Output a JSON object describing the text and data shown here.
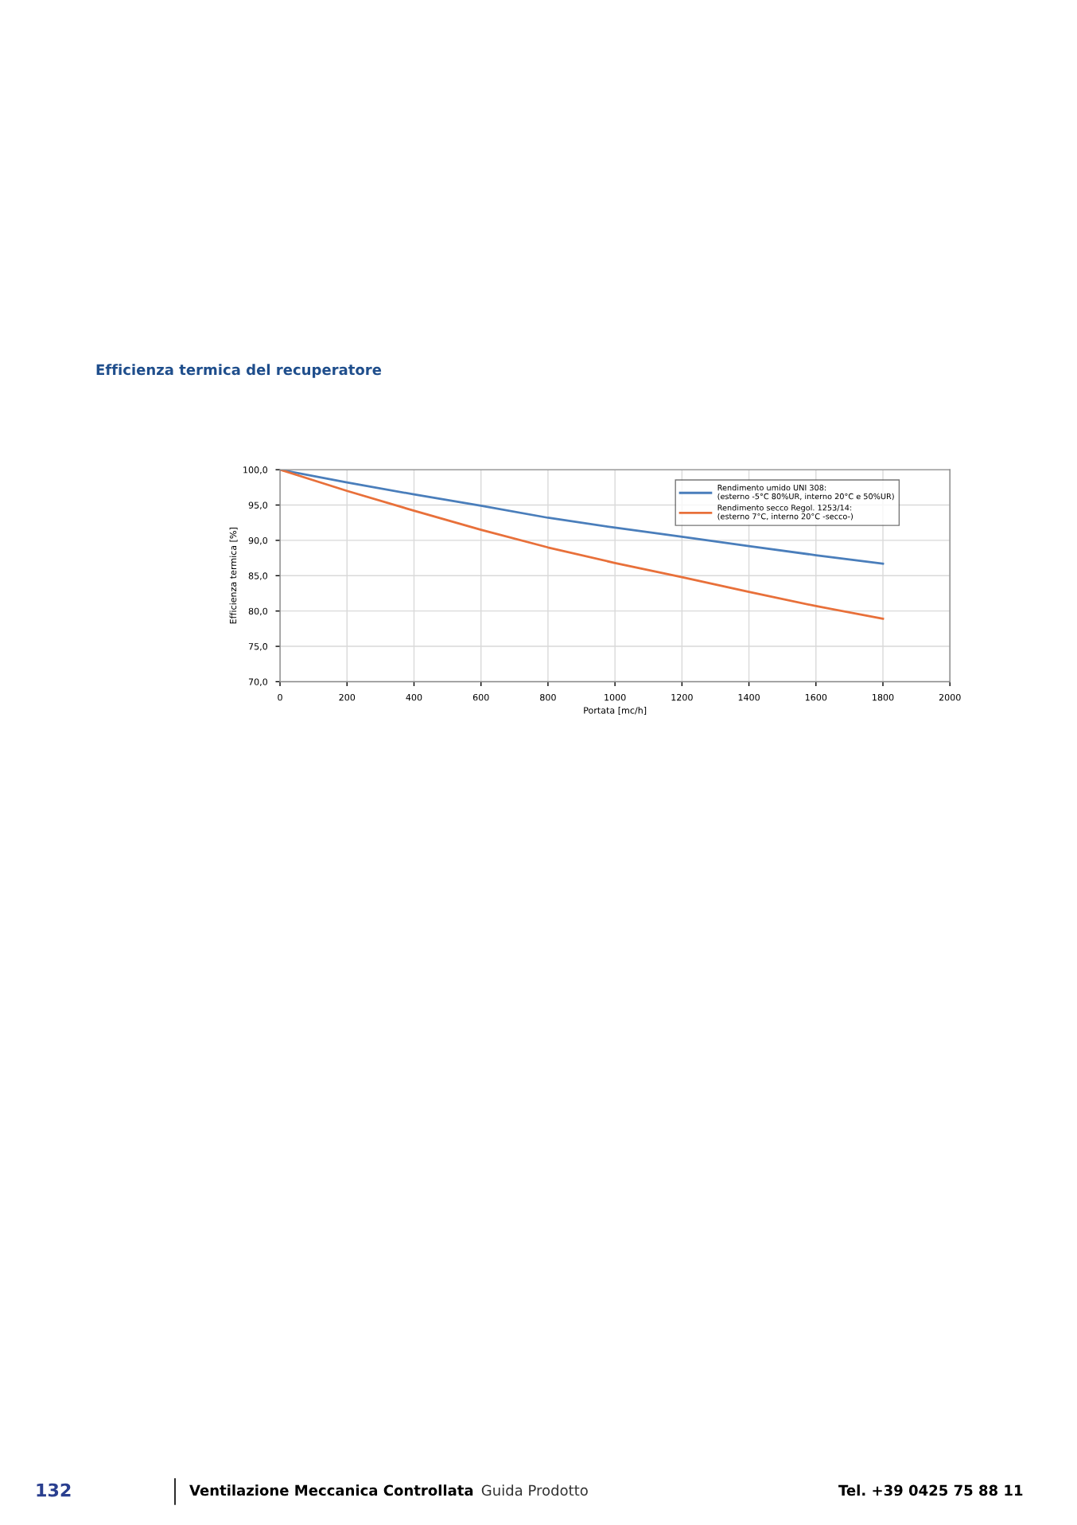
{
  "chart_data": {
    "type": "line",
    "title": "Efficienza termica del recuperatore",
    "xlabel": "Portata [mc/h]",
    "ylabel": "Efficienza termica [%]",
    "x": [
      0,
      200,
      400,
      600,
      800,
      1000,
      1200,
      1400,
      1600,
      1800
    ],
    "series": [
      {
        "name": "Rendimento umido UNI 308:\n(esterno -5°C 80%UR, interno 20°C e 50%UR)",
        "color": "#4a7ebb",
        "values": [
          100,
          98.2,
          96.5,
          94.9,
          93.2,
          91.8,
          90.5,
          89.2,
          87.9,
          86.7
        ]
      },
      {
        "name": "Rendimento secco Regol. 1253/14:\n(esterno 7°C, interno 20°C -secco-)",
        "color": "#e8703a",
        "values": [
          100,
          97.0,
          94.2,
          91.5,
          89.0,
          86.8,
          84.8,
          82.7,
          80.7,
          78.9
        ]
      }
    ],
    "xlim": [
      0,
      2000
    ],
    "xticks": [
      0,
      200,
      400,
      600,
      800,
      1000,
      1200,
      1400,
      1600,
      1800,
      2000
    ],
    "ylim": [
      70,
      100
    ],
    "yticks": [
      {
        "value": 70,
        "label": "70,0"
      },
      {
        "value": 75,
        "label": "75,0"
      },
      {
        "value": 80,
        "label": "80,0"
      },
      {
        "value": 85,
        "label": "85,0"
      },
      {
        "value": 90,
        "label": "90,0"
      },
      {
        "value": 95,
        "label": "95,0"
      },
      {
        "value": 100,
        "label": "100,0"
      }
    ],
    "grid": true,
    "legend": "top right",
    "marker": "none",
    "line_style": "solid",
    "annotations": [
      "132",
      "Ventilazione Meccanica Controllata",
      "Guida Prodotto",
      "Tel. +39 0425 75 88 11"
    ]
  }
}
